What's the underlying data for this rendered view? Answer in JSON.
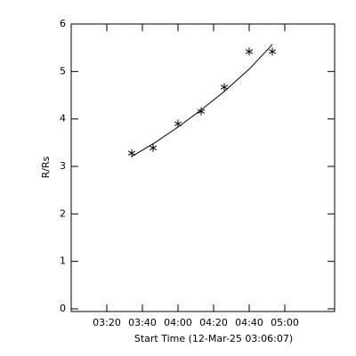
{
  "chart_data": {
    "type": "scatter",
    "x_label": "Start Time (12-Mar-25 03:06:07)",
    "y_label": "R/Rs",
    "series": [
      {
        "x": [
          "03:34",
          "03:46",
          "04:00",
          "04:13",
          "04:26",
          "04:40",
          "04:53"
        ],
        "values": [
          3.28,
          3.39,
          3.9,
          4.16,
          4.67,
          5.42,
          5.42
        ],
        "color": "#000000",
        "marker": "asterisk"
      }
    ],
    "fit": {
      "x": [
        "03:34",
        "03:47",
        "04:00",
        "04:13",
        "04:26",
        "04:40",
        "04:53"
      ],
      "values": [
        3.21,
        3.5,
        3.83,
        4.19,
        4.58,
        5.05,
        5.57
      ],
      "color": "#000000"
    },
    "xlim": [
      "03:00",
      "05:28"
    ],
    "xticks": [
      "03:20",
      "03:40",
      "04:00",
      "04:20",
      "04:40",
      "05:00"
    ],
    "ylim": [
      0,
      6
    ],
    "yticks": [
      0,
      1,
      2,
      3,
      4,
      5,
      6
    ]
  }
}
